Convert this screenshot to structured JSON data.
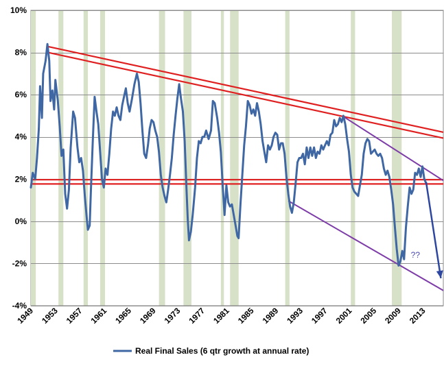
{
  "chart_data": {
    "type": "line",
    "title": "",
    "xlabel": "",
    "ylabel": "",
    "xlim": [
      1949,
      2016.3
    ],
    "ylim": [
      -4,
      10
    ],
    "y_tick_labels": [
      "-4%",
      "-2%",
      "0%",
      "2%",
      "4%",
      "6%",
      "8%",
      "10%"
    ],
    "y_tick_values": [
      -4,
      -2,
      0,
      2,
      4,
      6,
      8,
      10
    ],
    "x_tick_labels": [
      "1949",
      "1953",
      "1957",
      "1961",
      "1965",
      "1969",
      "1973",
      "1977",
      "1981",
      "1985",
      "1989",
      "1993",
      "1997",
      "2001",
      "2005",
      "2009",
      "2013"
    ],
    "x_tick_values": [
      1949,
      1953,
      1957,
      1961,
      1965,
      1969,
      1973,
      1977,
      1981,
      1985,
      1989,
      1993,
      1997,
      2001,
      2005,
      2009,
      2013
    ],
    "grid": "horizontal",
    "legend_position": "bottom",
    "recession_color": "#d7e1c8",
    "recessions": [
      [
        1949.0,
        1949.8
      ],
      [
        1953.5,
        1954.3
      ],
      [
        1957.6,
        1958.3
      ],
      [
        1960.3,
        1961.1
      ],
      [
        1969.9,
        1970.9
      ],
      [
        1973.9,
        1975.2
      ],
      [
        1980.0,
        1980.5
      ],
      [
        1981.5,
        1982.9
      ],
      [
        1990.5,
        1991.2
      ],
      [
        2001.2,
        2001.9
      ],
      [
        2007.9,
        2009.5
      ]
    ],
    "series": [
      {
        "name": "Real Final Sales (6 qtr growth at annual rate)",
        "color": "#3f67a3",
        "points": [
          [
            1949.0,
            1.6
          ],
          [
            1949.3,
            2.3
          ],
          [
            1949.7,
            2.0
          ],
          [
            1950.0,
            3.0
          ],
          [
            1950.3,
            4.4
          ],
          [
            1950.5,
            6.4
          ],
          [
            1950.8,
            4.9
          ],
          [
            1951.0,
            7.0
          ],
          [
            1951.4,
            7.6
          ],
          [
            1951.7,
            8.4
          ],
          [
            1952.0,
            7.6
          ],
          [
            1952.2,
            5.7
          ],
          [
            1952.5,
            6.2
          ],
          [
            1952.8,
            5.3
          ],
          [
            1953.0,
            6.7
          ],
          [
            1953.4,
            5.7
          ],
          [
            1953.7,
            4.5
          ],
          [
            1954.0,
            3.1
          ],
          [
            1954.3,
            3.4
          ],
          [
            1954.6,
            1.3
          ],
          [
            1954.9,
            0.6
          ],
          [
            1955.2,
            1.5
          ],
          [
            1955.5,
            3.5
          ],
          [
            1955.9,
            5.2
          ],
          [
            1956.2,
            4.9
          ],
          [
            1956.6,
            3.5
          ],
          [
            1956.9,
            2.8
          ],
          [
            1957.2,
            3.0
          ],
          [
            1957.5,
            2.4
          ],
          [
            1957.8,
            1.2
          ],
          [
            1958.1,
            0.2
          ],
          [
            1958.3,
            -0.4
          ],
          [
            1958.6,
            -0.2
          ],
          [
            1958.8,
            1.5
          ],
          [
            1959.1,
            3.8
          ],
          [
            1959.4,
            5.9
          ],
          [
            1959.7,
            5.2
          ],
          [
            1960.0,
            4.6
          ],
          [
            1960.3,
            3.3
          ],
          [
            1960.6,
            2.0
          ],
          [
            1960.9,
            1.6
          ],
          [
            1961.2,
            2.5
          ],
          [
            1961.5,
            2.2
          ],
          [
            1961.8,
            3.2
          ],
          [
            1962.1,
            4.4
          ],
          [
            1962.4,
            5.2
          ],
          [
            1962.7,
            5.0
          ],
          [
            1963.0,
            5.4
          ],
          [
            1963.3,
            5.0
          ],
          [
            1963.6,
            4.8
          ],
          [
            1963.9,
            5.5
          ],
          [
            1964.2,
            5.9
          ],
          [
            1964.5,
            6.3
          ],
          [
            1964.8,
            5.6
          ],
          [
            1965.1,
            5.2
          ],
          [
            1965.5,
            5.8
          ],
          [
            1965.9,
            6.5
          ],
          [
            1966.3,
            7.0
          ],
          [
            1966.6,
            6.6
          ],
          [
            1966.9,
            5.6
          ],
          [
            1967.2,
            4.3
          ],
          [
            1967.5,
            3.2
          ],
          [
            1967.8,
            3.0
          ],
          [
            1968.1,
            3.6
          ],
          [
            1968.4,
            4.4
          ],
          [
            1968.7,
            4.8
          ],
          [
            1969.0,
            4.7
          ],
          [
            1969.3,
            4.3
          ],
          [
            1969.6,
            4.0
          ],
          [
            1969.9,
            3.3
          ],
          [
            1970.2,
            2.2
          ],
          [
            1970.5,
            1.6
          ],
          [
            1970.8,
            1.2
          ],
          [
            1971.1,
            0.9
          ],
          [
            1971.4,
            1.5
          ],
          [
            1971.7,
            2.2
          ],
          [
            1972.0,
            3.0
          ],
          [
            1972.3,
            4.1
          ],
          [
            1972.6,
            5.0
          ],
          [
            1972.9,
            5.8
          ],
          [
            1973.2,
            6.5
          ],
          [
            1973.5,
            5.8
          ],
          [
            1973.8,
            5.2
          ],
          [
            1974.1,
            3.8
          ],
          [
            1974.4,
            1.5
          ],
          [
            1974.6,
            0.1
          ],
          [
            1974.8,
            -0.9
          ],
          [
            1975.1,
            -0.5
          ],
          [
            1975.4,
            0.3
          ],
          [
            1975.8,
            1.6
          ],
          [
            1976.1,
            3.0
          ],
          [
            1976.4,
            3.8
          ],
          [
            1976.7,
            3.7
          ],
          [
            1977.0,
            4.0
          ],
          [
            1977.3,
            4.0
          ],
          [
            1977.6,
            4.3
          ],
          [
            1978.0,
            3.9
          ],
          [
            1978.4,
            4.3
          ],
          [
            1978.7,
            5.7
          ],
          [
            1979.0,
            5.6
          ],
          [
            1979.4,
            4.9
          ],
          [
            1979.7,
            4.2
          ],
          [
            1980.0,
            3.3
          ],
          [
            1980.3,
            1.7
          ],
          [
            1980.6,
            0.3
          ],
          [
            1980.9,
            1.7
          ],
          [
            1981.2,
            0.9
          ],
          [
            1981.5,
            0.7
          ],
          [
            1981.8,
            0.8
          ],
          [
            1982.1,
            0.3
          ],
          [
            1982.4,
            -0.2
          ],
          [
            1982.7,
            -0.7
          ],
          [
            1982.9,
            -0.8
          ],
          [
            1983.2,
            0.8
          ],
          [
            1983.5,
            2.2
          ],
          [
            1983.8,
            3.6
          ],
          [
            1984.1,
            4.5
          ],
          [
            1984.4,
            5.7
          ],
          [
            1984.7,
            5.5
          ],
          [
            1985.0,
            5.1
          ],
          [
            1985.3,
            5.3
          ],
          [
            1985.6,
            5.0
          ],
          [
            1985.9,
            5.6
          ],
          [
            1986.2,
            5.2
          ],
          [
            1986.5,
            4.6
          ],
          [
            1986.8,
            3.8
          ],
          [
            1987.1,
            3.3
          ],
          [
            1987.4,
            2.8
          ],
          [
            1987.7,
            3.6
          ],
          [
            1988.0,
            3.4
          ],
          [
            1988.3,
            3.6
          ],
          [
            1988.6,
            4.0
          ],
          [
            1988.9,
            4.2
          ],
          [
            1989.2,
            4.1
          ],
          [
            1989.5,
            3.4
          ],
          [
            1989.8,
            3.7
          ],
          [
            1990.1,
            3.7
          ],
          [
            1990.4,
            3.2
          ],
          [
            1990.7,
            2.1
          ],
          [
            1991.0,
            1.3
          ],
          [
            1991.3,
            0.7
          ],
          [
            1991.6,
            0.4
          ],
          [
            1991.9,
            0.9
          ],
          [
            1992.2,
            1.8
          ],
          [
            1992.5,
            2.8
          ],
          [
            1992.8,
            3.0
          ],
          [
            1993.1,
            3.0
          ],
          [
            1993.4,
            3.2
          ],
          [
            1993.7,
            2.7
          ],
          [
            1994.0,
            3.5
          ],
          [
            1994.3,
            3.0
          ],
          [
            1994.6,
            3.5
          ],
          [
            1994.9,
            3.1
          ],
          [
            1995.2,
            3.5
          ],
          [
            1995.5,
            3.0
          ],
          [
            1995.8,
            3.3
          ],
          [
            1996.1,
            3.2
          ],
          [
            1996.4,
            3.6
          ],
          [
            1996.7,
            3.4
          ],
          [
            1997.0,
            3.6
          ],
          [
            1997.3,
            3.8
          ],
          [
            1997.6,
            3.6
          ],
          [
            1997.9,
            4.1
          ],
          [
            1998.2,
            4.2
          ],
          [
            1998.5,
            4.8
          ],
          [
            1998.8,
            4.5
          ],
          [
            1999.1,
            4.6
          ],
          [
            1999.4,
            4.9
          ],
          [
            1999.7,
            4.7
          ],
          [
            2000.0,
            5.0
          ],
          [
            2000.3,
            4.6
          ],
          [
            2000.6,
            3.9
          ],
          [
            2000.9,
            3.3
          ],
          [
            2001.2,
            2.2
          ],
          [
            2001.5,
            1.6
          ],
          [
            2001.8,
            1.4
          ],
          [
            2002.1,
            1.3
          ],
          [
            2002.4,
            1.2
          ],
          [
            2002.7,
            1.7
          ],
          [
            2003.0,
            2.2
          ],
          [
            2003.3,
            3.2
          ],
          [
            2003.6,
            3.7
          ],
          [
            2003.9,
            3.9
          ],
          [
            2004.2,
            3.8
          ],
          [
            2004.5,
            3.2
          ],
          [
            2004.8,
            3.3
          ],
          [
            2005.1,
            3.4
          ],
          [
            2005.4,
            3.2
          ],
          [
            2005.7,
            3.1
          ],
          [
            2006.0,
            3.2
          ],
          [
            2006.3,
            3.0
          ],
          [
            2006.6,
            2.5
          ],
          [
            2006.9,
            2.2
          ],
          [
            2007.2,
            2.4
          ],
          [
            2007.5,
            2.1
          ],
          [
            2007.8,
            1.5
          ],
          [
            2008.1,
            0.8
          ],
          [
            2008.4,
            -0.3
          ],
          [
            2008.7,
            -1.3
          ],
          [
            2009.0,
            -2.1
          ],
          [
            2009.3,
            -1.9
          ],
          [
            2009.6,
            -1.4
          ],
          [
            2009.9,
            -1.8
          ],
          [
            2010.2,
            -0.3
          ],
          [
            2010.5,
            0.7
          ],
          [
            2010.8,
            1.6
          ],
          [
            2011.1,
            1.3
          ],
          [
            2011.4,
            1.5
          ],
          [
            2011.7,
            2.3
          ],
          [
            2012.0,
            2.2
          ],
          [
            2012.3,
            2.5
          ],
          [
            2012.6,
            2.1
          ],
          [
            2012.9,
            2.6
          ],
          [
            2013.2,
            2.0
          ],
          [
            2013.5,
            1.8
          ]
        ]
      }
    ],
    "annotations": [
      {
        "text": "??",
        "x": 2011.0,
        "y": -1.6
      }
    ],
    "trendlines": {
      "red": {
        "color": "#e02020",
        "lines": [
          [
            [
              1951.8,
              8.28
            ],
            [
              2016.3,
              4.22
            ]
          ],
          [
            [
              1951.8,
              8.0
            ],
            [
              2016.3,
              3.94
            ]
          ],
          [
            [
              1949.0,
              1.97
            ],
            [
              2016.3,
              1.97
            ]
          ],
          [
            [
              1949.0,
              1.77
            ],
            [
              2016.3,
              1.77
            ]
          ]
        ]
      },
      "purple": {
        "color": "#7d3ca8",
        "lines": [
          [
            [
              1999.8,
              5.0
            ],
            [
              2016.3,
              1.93
            ]
          ],
          [
            [
              1991.0,
              0.97
            ],
            [
              2016.3,
              -3.28
            ]
          ]
        ]
      },
      "arrow": {
        "color": "#2d46a0",
        "from": [
          2013.5,
          1.85
        ],
        "to": [
          2015.9,
          -2.7
        ]
      }
    }
  },
  "legend": {
    "label": "Real Final Sales (6 qtr growth at annual rate)"
  }
}
